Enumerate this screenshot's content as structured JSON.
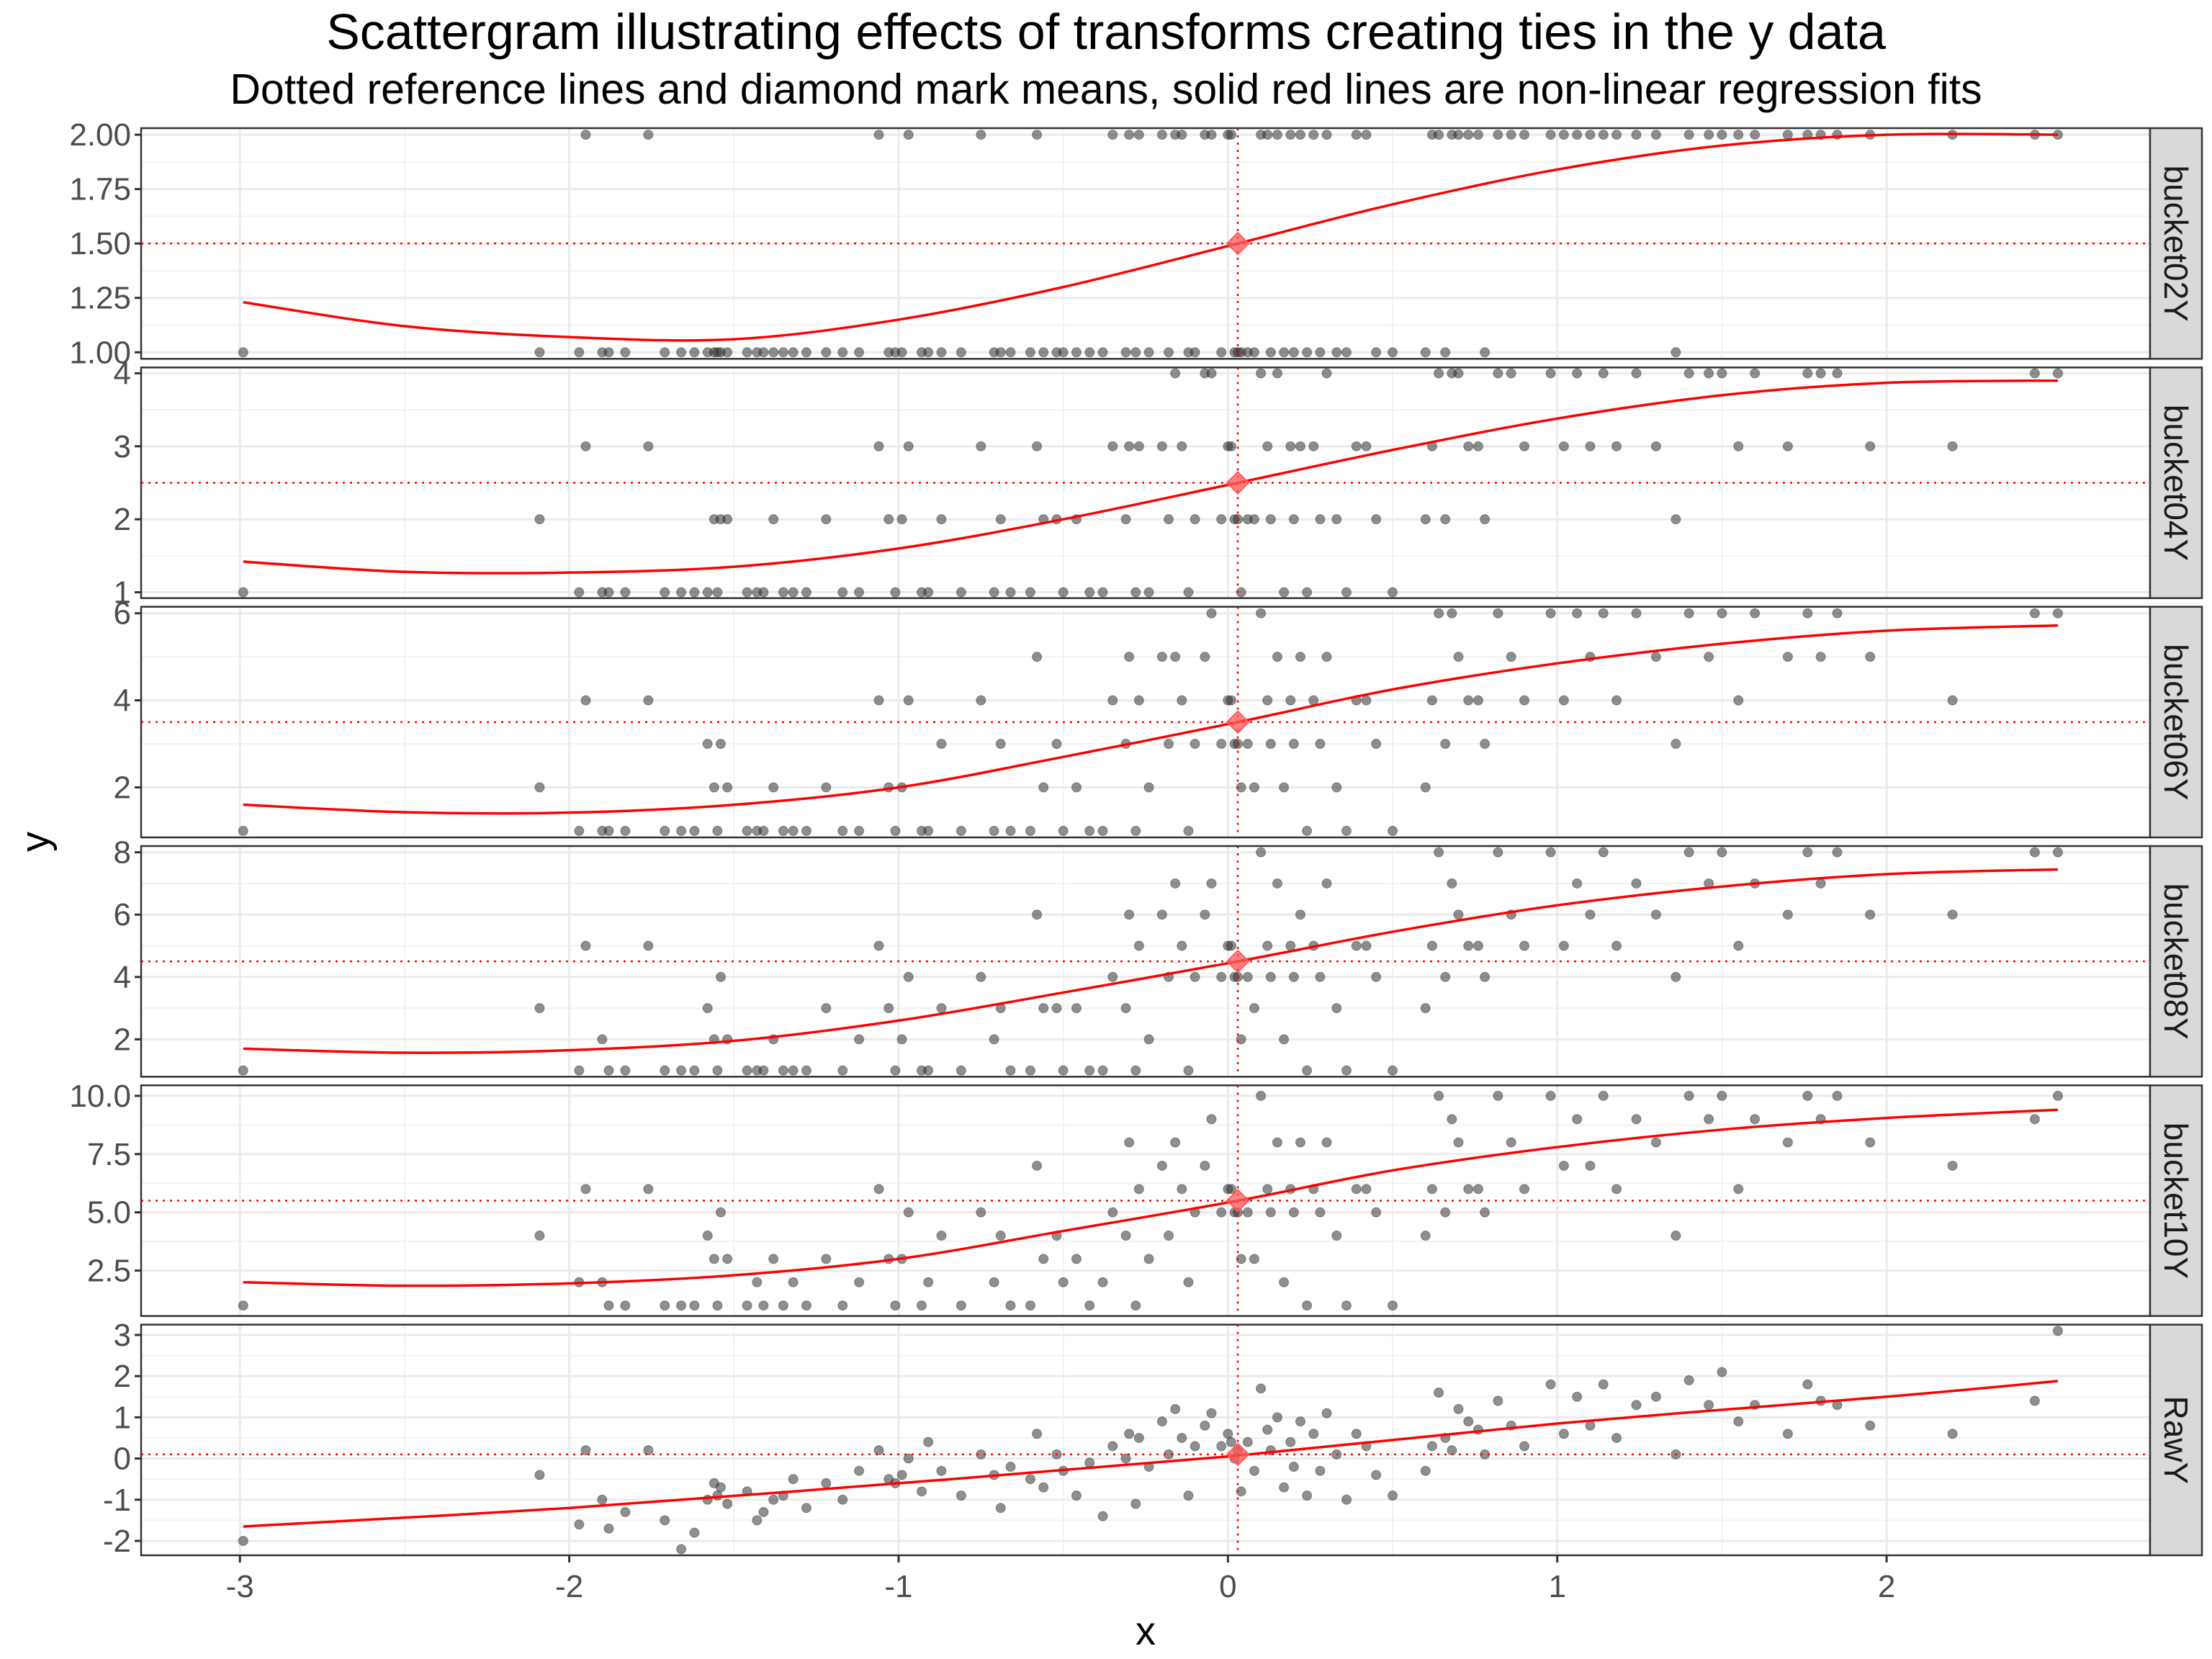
{
  "chart_data": {
    "type": "scatter",
    "title": "Scattergram illustrating effects of transforms creating ties in the y data",
    "subtitle": "Dotted reference lines and diamond mark means, solid red lines are non-linear regression fits",
    "xlabel": "x",
    "ylabel": "y",
    "xlim": [
      -3.3,
      2.8
    ],
    "x_ticks": [
      -3,
      -2,
      -1,
      0,
      1,
      2
    ],
    "x_tick_labels": [
      "-3",
      "-2",
      "-1",
      "0",
      "1",
      "2"
    ],
    "grid": true,
    "point_color": "#333333",
    "fit_color": "#ff0000",
    "mean_color": "#ff5a5a",
    "x_points": [
      -2.99,
      -2.09,
      -1.97,
      -1.95,
      -1.9,
      -1.88,
      -1.83,
      -1.76,
      -1.71,
      -1.66,
      -1.62,
      -1.58,
      -1.56,
      -1.55,
      -1.54,
      -1.52,
      -1.46,
      -1.43,
      -1.41,
      -1.38,
      -1.35,
      -1.32,
      -1.28,
      -1.22,
      -1.17,
      -1.12,
      -1.06,
      -1.03,
      -1.01,
      -0.99,
      -0.97,
      -0.93,
      -0.91,
      -0.87,
      -0.81,
      -0.75,
      -0.71,
      -0.69,
      -0.66,
      -0.6,
      -0.58,
      -0.56,
      -0.52,
      -0.5,
      -0.46,
      -0.42,
      -0.38,
      -0.35,
      -0.31,
      -0.3,
      -0.28,
      -0.27,
      -0.24,
      -0.2,
      -0.18,
      -0.16,
      -0.14,
      -0.12,
      -0.1,
      -0.07,
      -0.05,
      -0.02,
      0.0,
      0.01,
      0.02,
      0.03,
      0.04,
      0.06,
      0.08,
      0.1,
      0.12,
      0.13,
      0.15,
      0.17,
      0.19,
      0.2,
      0.22,
      0.24,
      0.26,
      0.28,
      0.3,
      0.33,
      0.36,
      0.39,
      0.42,
      0.45,
      0.5,
      0.6,
      0.62,
      0.64,
      0.66,
      0.68,
      0.7,
      0.73,
      0.76,
      0.78,
      0.82,
      0.86,
      0.9,
      0.98,
      1.02,
      1.06,
      1.1,
      1.14,
      1.18,
      1.24,
      1.3,
      1.36,
      1.4,
      1.46,
      1.5,
      1.55,
      1.6,
      1.7,
      1.76,
      1.8,
      1.85,
      1.95,
      2.2,
      2.45,
      2.52
    ],
    "mean": {
      "x": 0.03
    },
    "panels": [
      {
        "strip": "bucket02Y",
        "y_ticks": [
          1.0,
          1.25,
          1.5,
          1.75,
          2.0
        ],
        "y_tick_labels": [
          "1.00",
          "1.25",
          "1.50",
          "1.75",
          "2.00"
        ],
        "ylim": [
          0.97,
          2.03
        ],
        "mean_y": 1.5,
        "fit": [
          [
            -2.99,
            1.23
          ],
          [
            -2.5,
            1.12
          ],
          [
            -2.0,
            1.07
          ],
          [
            -1.5,
            1.06
          ],
          [
            -1.0,
            1.15
          ],
          [
            -0.5,
            1.3
          ],
          [
            0.03,
            1.5
          ],
          [
            0.5,
            1.68
          ],
          [
            1.0,
            1.84
          ],
          [
            1.5,
            1.95
          ],
          [
            2.0,
            2.0
          ],
          [
            2.52,
            2.0
          ]
        ],
        "points": [
          1,
          1,
          1,
          2,
          1,
          1,
          1,
          2,
          1,
          1,
          1,
          1,
          1,
          1,
          1,
          1,
          1,
          1,
          1,
          1,
          1,
          1,
          1,
          1,
          1,
          1,
          2,
          1,
          1,
          1,
          2,
          1,
          1,
          1,
          1,
          2,
          1,
          1,
          1,
          1,
          2,
          1,
          1,
          1,
          1,
          1,
          1,
          2,
          1,
          2,
          1,
          2,
          1,
          2,
          1,
          2,
          2,
          1,
          1,
          2,
          2,
          1,
          2,
          2,
          1,
          1,
          1,
          1,
          1,
          2,
          2,
          1,
          2,
          1,
          2,
          1,
          2,
          1,
          2,
          1,
          2,
          1,
          1,
          2,
          2,
          1,
          1,
          1,
          2,
          2,
          1,
          2,
          2,
          2,
          2,
          1,
          2,
          2,
          2,
          2,
          2,
          2,
          2,
          2,
          2,
          2,
          2,
          1,
          2,
          2,
          2,
          2,
          2,
          2,
          2,
          2,
          2,
          2,
          2,
          2,
          2
        ]
      },
      {
        "strip": "bucket04Y",
        "y_ticks": [
          1,
          2,
          3,
          4
        ],
        "y_tick_labels": [
          "1",
          "2",
          "3",
          "4"
        ],
        "ylim": [
          0.92,
          4.08
        ],
        "mean_y": 2.5,
        "fit": [
          [
            -2.99,
            1.42
          ],
          [
            -2.5,
            1.28
          ],
          [
            -2.0,
            1.27
          ],
          [
            -1.5,
            1.35
          ],
          [
            -1.0,
            1.6
          ],
          [
            -0.5,
            2.0
          ],
          [
            0.03,
            2.5
          ],
          [
            0.5,
            2.95
          ],
          [
            1.0,
            3.38
          ],
          [
            1.5,
            3.7
          ],
          [
            2.0,
            3.87
          ],
          [
            2.52,
            3.9
          ]
        ],
        "points": [
          1,
          2,
          1,
          3,
          1,
          1,
          1,
          3,
          1,
          1,
          1,
          1,
          2,
          1,
          2,
          2,
          1,
          1,
          1,
          2,
          1,
          1,
          1,
          2,
          1,
          1,
          3,
          2,
          1,
          2,
          3,
          1,
          1,
          2,
          1,
          3,
          1,
          2,
          1,
          1,
          3,
          2,
          2,
          1,
          2,
          1,
          1,
          3,
          2,
          3,
          1,
          3,
          1,
          3,
          2,
          4,
          3,
          1,
          2,
          4,
          4,
          2,
          3,
          3,
          2,
          2,
          1,
          2,
          2,
          4,
          3,
          2,
          4,
          1,
          3,
          2,
          3,
          1,
          3,
          2,
          4,
          2,
          1,
          3,
          3,
          2,
          1,
          2,
          3,
          4,
          2,
          4,
          4,
          3,
          3,
          2,
          4,
          4,
          3,
          4,
          3,
          4,
          3,
          4,
          3,
          4,
          3,
          2,
          4,
          4,
          4,
          3,
          4,
          3,
          4,
          4,
          4,
          3,
          3,
          4,
          4
        ]
      },
      {
        "strip": "bucket06Y",
        "y_ticks": [
          2,
          4,
          6
        ],
        "y_tick_labels": [
          "2",
          "4",
          "6"
        ],
        "ylim": [
          0.85,
          6.15
        ],
        "mean_y": 3.5,
        "fit": [
          [
            -2.99,
            1.6
          ],
          [
            -2.5,
            1.43
          ],
          [
            -2.0,
            1.42
          ],
          [
            -1.5,
            1.6
          ],
          [
            -1.0,
            2.0
          ],
          [
            -0.5,
            2.7
          ],
          [
            0.03,
            3.5
          ],
          [
            0.5,
            4.25
          ],
          [
            1.0,
            4.85
          ],
          [
            1.5,
            5.3
          ],
          [
            2.0,
            5.6
          ],
          [
            2.52,
            5.72
          ]
        ],
        "points": [
          1,
          2,
          1,
          4,
          1,
          1,
          1,
          4,
          1,
          1,
          1,
          3,
          2,
          1,
          3,
          2,
          1,
          1,
          1,
          2,
          1,
          1,
          1,
          2,
          1,
          1,
          4,
          2,
          1,
          2,
          4,
          1,
          1,
          3,
          1,
          4,
          1,
          3,
          1,
          1,
          5,
          2,
          3,
          1,
          2,
          1,
          1,
          4,
          3,
          5,
          1,
          4,
          2,
          5,
          3,
          5,
          4,
          1,
          3,
          5,
          6,
          3,
          4,
          4,
          3,
          3,
          2,
          3,
          2,
          6,
          4,
          3,
          5,
          2,
          4,
          3,
          5,
          1,
          4,
          3,
          5,
          2,
          1,
          4,
          4,
          3,
          1,
          2,
          4,
          6,
          3,
          6,
          5,
          4,
          4,
          3,
          6,
          5,
          4,
          6,
          4,
          6,
          5,
          6,
          4,
          6,
          5,
          3,
          6,
          5,
          6,
          4,
          6,
          5,
          6,
          5,
          6,
          5,
          4,
          6,
          6
        ]
      },
      {
        "strip": "bucket08Y",
        "y_ticks": [
          2,
          4,
          6,
          8
        ],
        "y_tick_labels": [
          "2",
          "4",
          "6",
          "8"
        ],
        "ylim": [
          0.8,
          8.2
        ],
        "mean_y": 4.5,
        "fit": [
          [
            -2.99,
            1.7
          ],
          [
            -2.5,
            1.57
          ],
          [
            -2.0,
            1.65
          ],
          [
            -1.5,
            1.95
          ],
          [
            -1.0,
            2.6
          ],
          [
            -0.5,
            3.5
          ],
          [
            0.03,
            4.5
          ],
          [
            0.5,
            5.45
          ],
          [
            1.0,
            6.3
          ],
          [
            1.5,
            6.9
          ],
          [
            2.0,
            7.3
          ],
          [
            2.52,
            7.45
          ]
        ],
        "points": [
          1,
          3,
          1,
          5,
          2,
          1,
          1,
          5,
          1,
          1,
          1,
          3,
          2,
          1,
          4,
          2,
          1,
          1,
          1,
          2,
          1,
          1,
          1,
          3,
          1,
          2,
          5,
          3,
          1,
          2,
          4,
          1,
          1,
          3,
          1,
          4,
          2,
          3,
          1,
          1,
          6,
          3,
          3,
          1,
          3,
          1,
          1,
          4,
          3,
          6,
          1,
          5,
          2,
          6,
          4,
          7,
          5,
          1,
          4,
          6,
          7,
          4,
          5,
          5,
          4,
          4,
          2,
          4,
          3,
          8,
          5,
          4,
          7,
          2,
          5,
          4,
          6,
          1,
          5,
          4,
          7,
          3,
          1,
          5,
          5,
          4,
          1,
          3,
          5,
          8,
          4,
          7,
          6,
          5,
          5,
          4,
          8,
          6,
          5,
          8,
          5,
          7,
          6,
          8,
          5,
          7,
          6,
          4,
          8,
          7,
          8,
          5,
          7,
          6,
          8,
          7,
          8,
          6,
          6,
          8,
          8
        ]
      },
      {
        "strip": "bucket10Y",
        "y_ticks": [
          2.5,
          5.0,
          7.5,
          10.0
        ],
        "y_tick_labels": [
          "2.5",
          "5.0",
          "7.5",
          "10.0"
        ],
        "ylim": [
          0.55,
          10.45
        ],
        "mean_y": 5.5,
        "fit": [
          [
            -2.99,
            2.0
          ],
          [
            -2.5,
            1.85
          ],
          [
            -2.0,
            1.95
          ],
          [
            -1.5,
            2.3
          ],
          [
            -1.0,
            3.0
          ],
          [
            -0.5,
            4.2
          ],
          [
            0.03,
            5.5
          ],
          [
            0.5,
            6.8
          ],
          [
            1.0,
            7.8
          ],
          [
            1.5,
            8.55
          ],
          [
            2.0,
            9.05
          ],
          [
            2.52,
            9.4
          ]
        ],
        "points": [
          1,
          4,
          2,
          6,
          2,
          1,
          1,
          6,
          1,
          1,
          1,
          4,
          3,
          1,
          5,
          3,
          1,
          2,
          1,
          3,
          1,
          2,
          1,
          3,
          1,
          2,
          6,
          3,
          1,
          3,
          5,
          1,
          2,
          4,
          1,
          5,
          2,
          4,
          1,
          1,
          7,
          3,
          4,
          2,
          3,
          1,
          2,
          5,
          4,
          8,
          1,
          6,
          3,
          7,
          4,
          8,
          6,
          2,
          5,
          7,
          9,
          5,
          6,
          6,
          5,
          5,
          3,
          5,
          3,
          10,
          6,
          5,
          8,
          2,
          6,
          5,
          8,
          1,
          6,
          5,
          8,
          4,
          1,
          6,
          6,
          5,
          1,
          4,
          6,
          10,
          5,
          9,
          8,
          6,
          6,
          5,
          10,
          8,
          6,
          10,
          7,
          9,
          7,
          10,
          6,
          9,
          8,
          4,
          10,
          9,
          10,
          6,
          9,
          8,
          10,
          9,
          10,
          8,
          7,
          9,
          10
        ]
      },
      {
        "strip": "RawY",
        "y_ticks": [
          -2,
          -1,
          0,
          1,
          2,
          3
        ],
        "y_tick_labels": [
          "-2",
          "-1",
          "0",
          "1",
          "2",
          "3"
        ],
        "ylim": [
          -2.35,
          3.25
        ],
        "mean_y": 0.1,
        "fit": [
          [
            -2.99,
            -1.65
          ],
          [
            -2.0,
            -1.2
          ],
          [
            -1.0,
            -0.6
          ],
          [
            0.0,
            0.05
          ],
          [
            1.0,
            0.85
          ],
          [
            2.0,
            1.5
          ],
          [
            2.52,
            1.88
          ]
        ],
        "points": [
          -2.0,
          -0.4,
          -1.6,
          0.2,
          -1.0,
          -1.7,
          -1.3,
          0.2,
          -1.5,
          -2.2,
          -1.8,
          -1.0,
          -0.6,
          -0.9,
          -0.7,
          -1.1,
          -0.8,
          -1.5,
          -1.3,
          -1.0,
          -0.9,
          -0.5,
          -1.2,
          -0.6,
          -1.0,
          -0.3,
          0.2,
          -0.5,
          -0.6,
          -0.4,
          0.0,
          -0.8,
          0.4,
          -0.3,
          -0.9,
          0.1,
          -0.4,
          -1.2,
          -0.2,
          -0.5,
          0.6,
          -0.7,
          0.1,
          -0.3,
          -0.9,
          -0.1,
          -1.4,
          0.3,
          0.0,
          0.6,
          -1.1,
          0.5,
          -0.2,
          0.9,
          0.1,
          1.2,
          0.5,
          -0.9,
          0.3,
          0.8,
          1.1,
          0.3,
          0.6,
          0.4,
          0.0,
          0.2,
          -0.8,
          0.4,
          -0.3,
          1.7,
          0.7,
          0.2,
          1.0,
          -0.7,
          0.4,
          -0.2,
          0.9,
          -0.9,
          0.6,
          -0.3,
          1.1,
          0.1,
          -1.0,
          0.6,
          0.3,
          -0.4,
          -0.9,
          -0.3,
          0.3,
          1.6,
          0.5,
          0.2,
          1.2,
          0.9,
          0.7,
          0.1,
          1.4,
          0.8,
          0.3,
          1.8,
          0.6,
          1.5,
          0.8,
          1.8,
          0.5,
          1.3,
          1.5,
          0.1,
          1.9,
          1.3,
          2.1,
          0.9,
          1.3,
          0.6,
          1.8,
          1.4,
          1.3,
          0.8,
          0.6,
          1.4,
          3.1
        ]
      }
    ]
  }
}
